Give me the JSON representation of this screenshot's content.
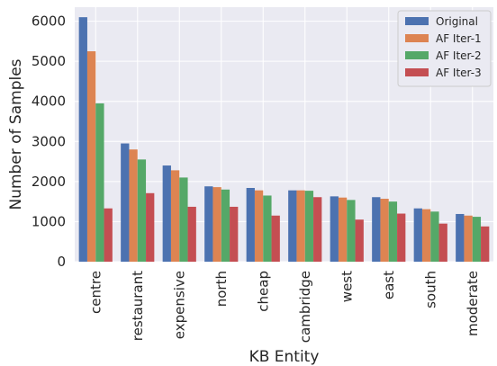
{
  "chart_data": {
    "type": "bar",
    "title": "",
    "xlabel": "KB Entity",
    "ylabel": "Number of Samples",
    "ylim": [
      0,
      6350
    ],
    "yticks": [
      0,
      1000,
      2000,
      3000,
      4000,
      5000,
      6000
    ],
    "grid": true,
    "legend_position": "top-right",
    "categories": [
      "centre",
      "restaurant",
      "expensive",
      "north",
      "cheap",
      "cambridge",
      "west",
      "east",
      "south",
      "moderate"
    ],
    "series": [
      {
        "name": "Original",
        "color": "#4c72b0",
        "values": [
          6100,
          2950,
          2400,
          1880,
          1840,
          1780,
          1630,
          1610,
          1330,
          1190
        ]
      },
      {
        "name": "AF Iter-1",
        "color": "#dd8452",
        "values": [
          5250,
          2800,
          2280,
          1860,
          1780,
          1780,
          1600,
          1570,
          1310,
          1150
        ]
      },
      {
        "name": "AF Iter-2",
        "color": "#55a868",
        "values": [
          3950,
          2550,
          2100,
          1800,
          1650,
          1770,
          1540,
          1500,
          1250,
          1120
        ]
      },
      {
        "name": "AF Iter-3",
        "color": "#c44e52",
        "values": [
          1330,
          1710,
          1370,
          1370,
          1150,
          1610,
          1050,
          1200,
          950,
          880
        ]
      }
    ],
    "background_color": "#eaeaf2",
    "grid_color": "#ffffff"
  }
}
